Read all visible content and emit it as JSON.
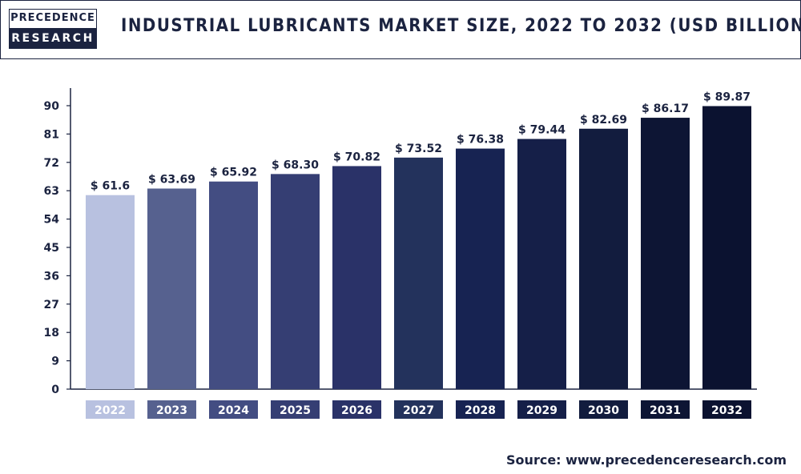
{
  "header": {
    "logo_line1": "PRECEDENCE",
    "logo_line2": "RESEARCH",
    "title": "INDUSTRIAL LUBRICANTS MARKET SIZE, 2022 TO 2032 (USD BILLION)"
  },
  "source": "Source: www.precedenceresearch.com",
  "chart_data": {
    "type": "bar",
    "title": "INDUSTRIAL LUBRICANTS MARKET SIZE, 2022 TO 2032 (USD BILLION)",
    "xlabel": "",
    "ylabel": "",
    "categories": [
      "2022",
      "2023",
      "2024",
      "2025",
      "2026",
      "2027",
      "2028",
      "2029",
      "2030",
      "2031",
      "2032"
    ],
    "values": [
      61.6,
      63.69,
      65.92,
      68.3,
      70.82,
      73.52,
      76.38,
      79.44,
      82.69,
      86.17,
      89.87
    ],
    "data_labels": [
      "$ 61.6",
      "$ 63.69",
      "$ 65.92",
      "$ 68.30",
      "$ 70.82",
      "$ 73.52",
      "$ 76.38",
      "$ 79.44",
      "$ 82.69",
      "$ 86.17",
      "$ 89.87"
    ],
    "yticks": [
      0,
      9,
      18,
      27,
      36,
      45,
      54,
      63,
      72,
      81,
      90
    ],
    "ylim": [
      0,
      90
    ],
    "grid": false,
    "legend": "none",
    "bar_colors": [
      "#b8c1e0",
      "#56618f",
      "#434d82",
      "#353e73",
      "#2a3268",
      "#23325c",
      "#172352",
      "#151f48",
      "#121c3e",
      "#0d1534",
      "#0b1230"
    ]
  }
}
